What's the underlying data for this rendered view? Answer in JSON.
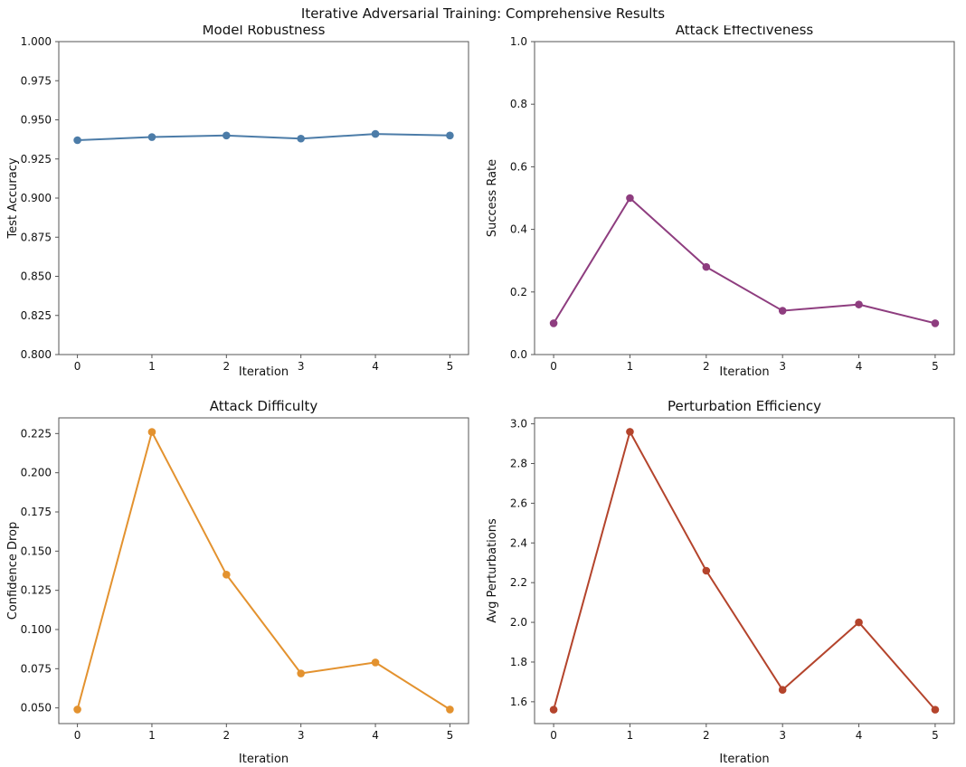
{
  "figure": {
    "suptitle": "Iterative Adversarial Training: Comprehensive Results",
    "background_color": "#ffffff",
    "text_color": "#111111",
    "spine_color": "#555555"
  },
  "chart_data": [
    {
      "type": "line",
      "title": "Model Robustness",
      "xlabel": "Iteration",
      "ylabel": "Test Accuracy",
      "x": [
        0,
        1,
        2,
        3,
        4,
        5
      ],
      "values": [
        0.937,
        0.939,
        0.94,
        0.938,
        0.941,
        0.94
      ],
      "color": "#4c7ca8",
      "marker": "circle",
      "grid": false,
      "legend": null,
      "xlim": [
        -0.25,
        5.25
      ],
      "ylim": [
        0.8,
        1.0
      ],
      "xticks": [
        0,
        1,
        2,
        3,
        4,
        5
      ],
      "xtick_labels": [
        "0",
        "1",
        "2",
        "3",
        "4",
        "5"
      ],
      "yticks": [
        0.8,
        0.825,
        0.85,
        0.875,
        0.9,
        0.925,
        0.95,
        0.975,
        1.0
      ],
      "ytick_labels": [
        "0.800",
        "0.825",
        "0.850",
        "0.875",
        "0.900",
        "0.925",
        "0.950",
        "0.975",
        "1.000"
      ]
    },
    {
      "type": "line",
      "title": "Attack Effectiveness",
      "xlabel": "Iteration",
      "ylabel": "Success Rate",
      "x": [
        0,
        1,
        2,
        3,
        4,
        5
      ],
      "values": [
        0.1,
        0.5,
        0.28,
        0.14,
        0.16,
        0.1
      ],
      "color": "#8e3d7f",
      "marker": "circle",
      "grid": false,
      "legend": null,
      "xlim": [
        -0.25,
        5.25
      ],
      "ylim": [
        0.0,
        1.0
      ],
      "xticks": [
        0,
        1,
        2,
        3,
        4,
        5
      ],
      "xtick_labels": [
        "0",
        "1",
        "2",
        "3",
        "4",
        "5"
      ],
      "yticks": [
        0.0,
        0.2,
        0.4,
        0.6,
        0.8,
        1.0
      ],
      "ytick_labels": [
        "0.0",
        "0.2",
        "0.4",
        "0.6",
        "0.8",
        "1.0"
      ]
    },
    {
      "type": "line",
      "title": "Attack Difficulty",
      "xlabel": "Iteration",
      "ylabel": "Confidence Drop",
      "x": [
        0,
        1,
        2,
        3,
        4,
        5
      ],
      "values": [
        0.049,
        0.226,
        0.135,
        0.072,
        0.079,
        0.049
      ],
      "color": "#e3922f",
      "marker": "circle",
      "grid": false,
      "legend": null,
      "xlim": [
        -0.25,
        5.25
      ],
      "ylim": [
        0.04,
        0.235
      ],
      "xticks": [
        0,
        1,
        2,
        3,
        4,
        5
      ],
      "xtick_labels": [
        "0",
        "1",
        "2",
        "3",
        "4",
        "5"
      ],
      "yticks": [
        0.05,
        0.075,
        0.1,
        0.125,
        0.15,
        0.175,
        0.2,
        0.225
      ],
      "ytick_labels": [
        "0.050",
        "0.075",
        "0.100",
        "0.125",
        "0.150",
        "0.175",
        "0.200",
        "0.225"
      ]
    },
    {
      "type": "line",
      "title": "Perturbation Efficiency",
      "xlabel": "Iteration",
      "ylabel": "Avg Perturbations",
      "x": [
        0,
        1,
        2,
        3,
        4,
        5
      ],
      "values": [
        1.56,
        2.96,
        2.26,
        1.66,
        2.0,
        1.56
      ],
      "color": "#b4442c",
      "marker": "circle",
      "grid": false,
      "legend": null,
      "xlim": [
        -0.25,
        5.25
      ],
      "ylim": [
        1.49,
        3.03
      ],
      "xticks": [
        0,
        1,
        2,
        3,
        4,
        5
      ],
      "xtick_labels": [
        "0",
        "1",
        "2",
        "3",
        "4",
        "5"
      ],
      "yticks": [
        1.6,
        1.8,
        2.0,
        2.2,
        2.4,
        2.6,
        2.8,
        3.0
      ],
      "ytick_labels": [
        "1.6",
        "1.8",
        "2.0",
        "2.2",
        "2.4",
        "2.6",
        "2.8",
        "3.0"
      ]
    }
  ]
}
